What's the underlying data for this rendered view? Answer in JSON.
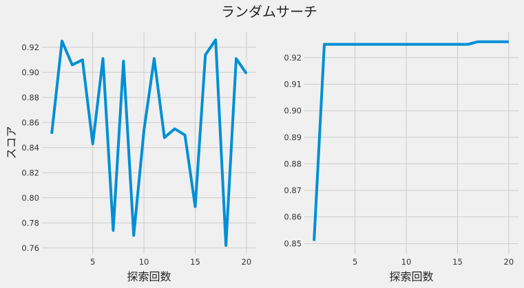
{
  "figure": {
    "title": "ランダムサーチ",
    "background": "#f0f0f0",
    "line_color": "#008fd5",
    "grid_color": "#cbcbcb"
  },
  "chart_data": [
    {
      "type": "line",
      "title": "",
      "xlabel": "探索回数",
      "ylabel": "スコア",
      "grid": true,
      "xlim": [
        0.05,
        20.95
      ],
      "ylim": [
        0.7555,
        0.9325
      ],
      "xticks": [
        5,
        10,
        15,
        20
      ],
      "yticks": [
        0.76,
        0.78,
        0.8,
        0.82,
        0.84,
        0.86,
        0.88,
        0.9,
        0.92
      ],
      "ytick_labels": [
        "0.76",
        "0.78",
        "0.80",
        "0.82",
        "0.84",
        "0.86",
        "0.88",
        "0.90",
        "0.92"
      ],
      "series": [
        {
          "x": [
            1,
            2,
            3,
            4,
            5,
            6,
            7,
            8,
            9,
            10,
            11,
            12,
            13,
            14,
            15,
            16,
            17,
            18,
            19,
            20
          ],
          "values": [
            0.851,
            0.925,
            0.906,
            0.91,
            0.843,
            0.911,
            0.774,
            0.909,
            0.77,
            0.854,
            0.911,
            0.848,
            0.855,
            0.85,
            0.793,
            0.914,
            0.926,
            0.762,
            0.911,
            0.899
          ]
        }
      ]
    },
    {
      "type": "line",
      "title": "",
      "xlabel": "探索回数",
      "ylabel": "",
      "grid": true,
      "xlim": [
        0.05,
        20.95
      ],
      "ylim": [
        0.8462,
        0.9298
      ],
      "xticks": [
        5,
        10,
        15,
        20
      ],
      "yticks": [
        0.85,
        0.86,
        0.87,
        0.88,
        0.89,
        0.9,
        0.91,
        0.92
      ],
      "ytick_labels": [
        "0.85",
        "0.86",
        "0.87",
        "0.88",
        "0.89",
        "0.90",
        "0.91",
        "0.92"
      ],
      "series": [
        {
          "x": [
            1,
            2,
            3,
            4,
            5,
            6,
            7,
            8,
            9,
            10,
            11,
            12,
            13,
            14,
            15,
            16,
            17,
            18,
            19,
            20
          ],
          "values": [
            0.851,
            0.925,
            0.925,
            0.925,
            0.925,
            0.925,
            0.925,
            0.925,
            0.925,
            0.925,
            0.925,
            0.925,
            0.925,
            0.925,
            0.925,
            0.925,
            0.926,
            0.926,
            0.926,
            0.926
          ]
        }
      ]
    }
  ]
}
